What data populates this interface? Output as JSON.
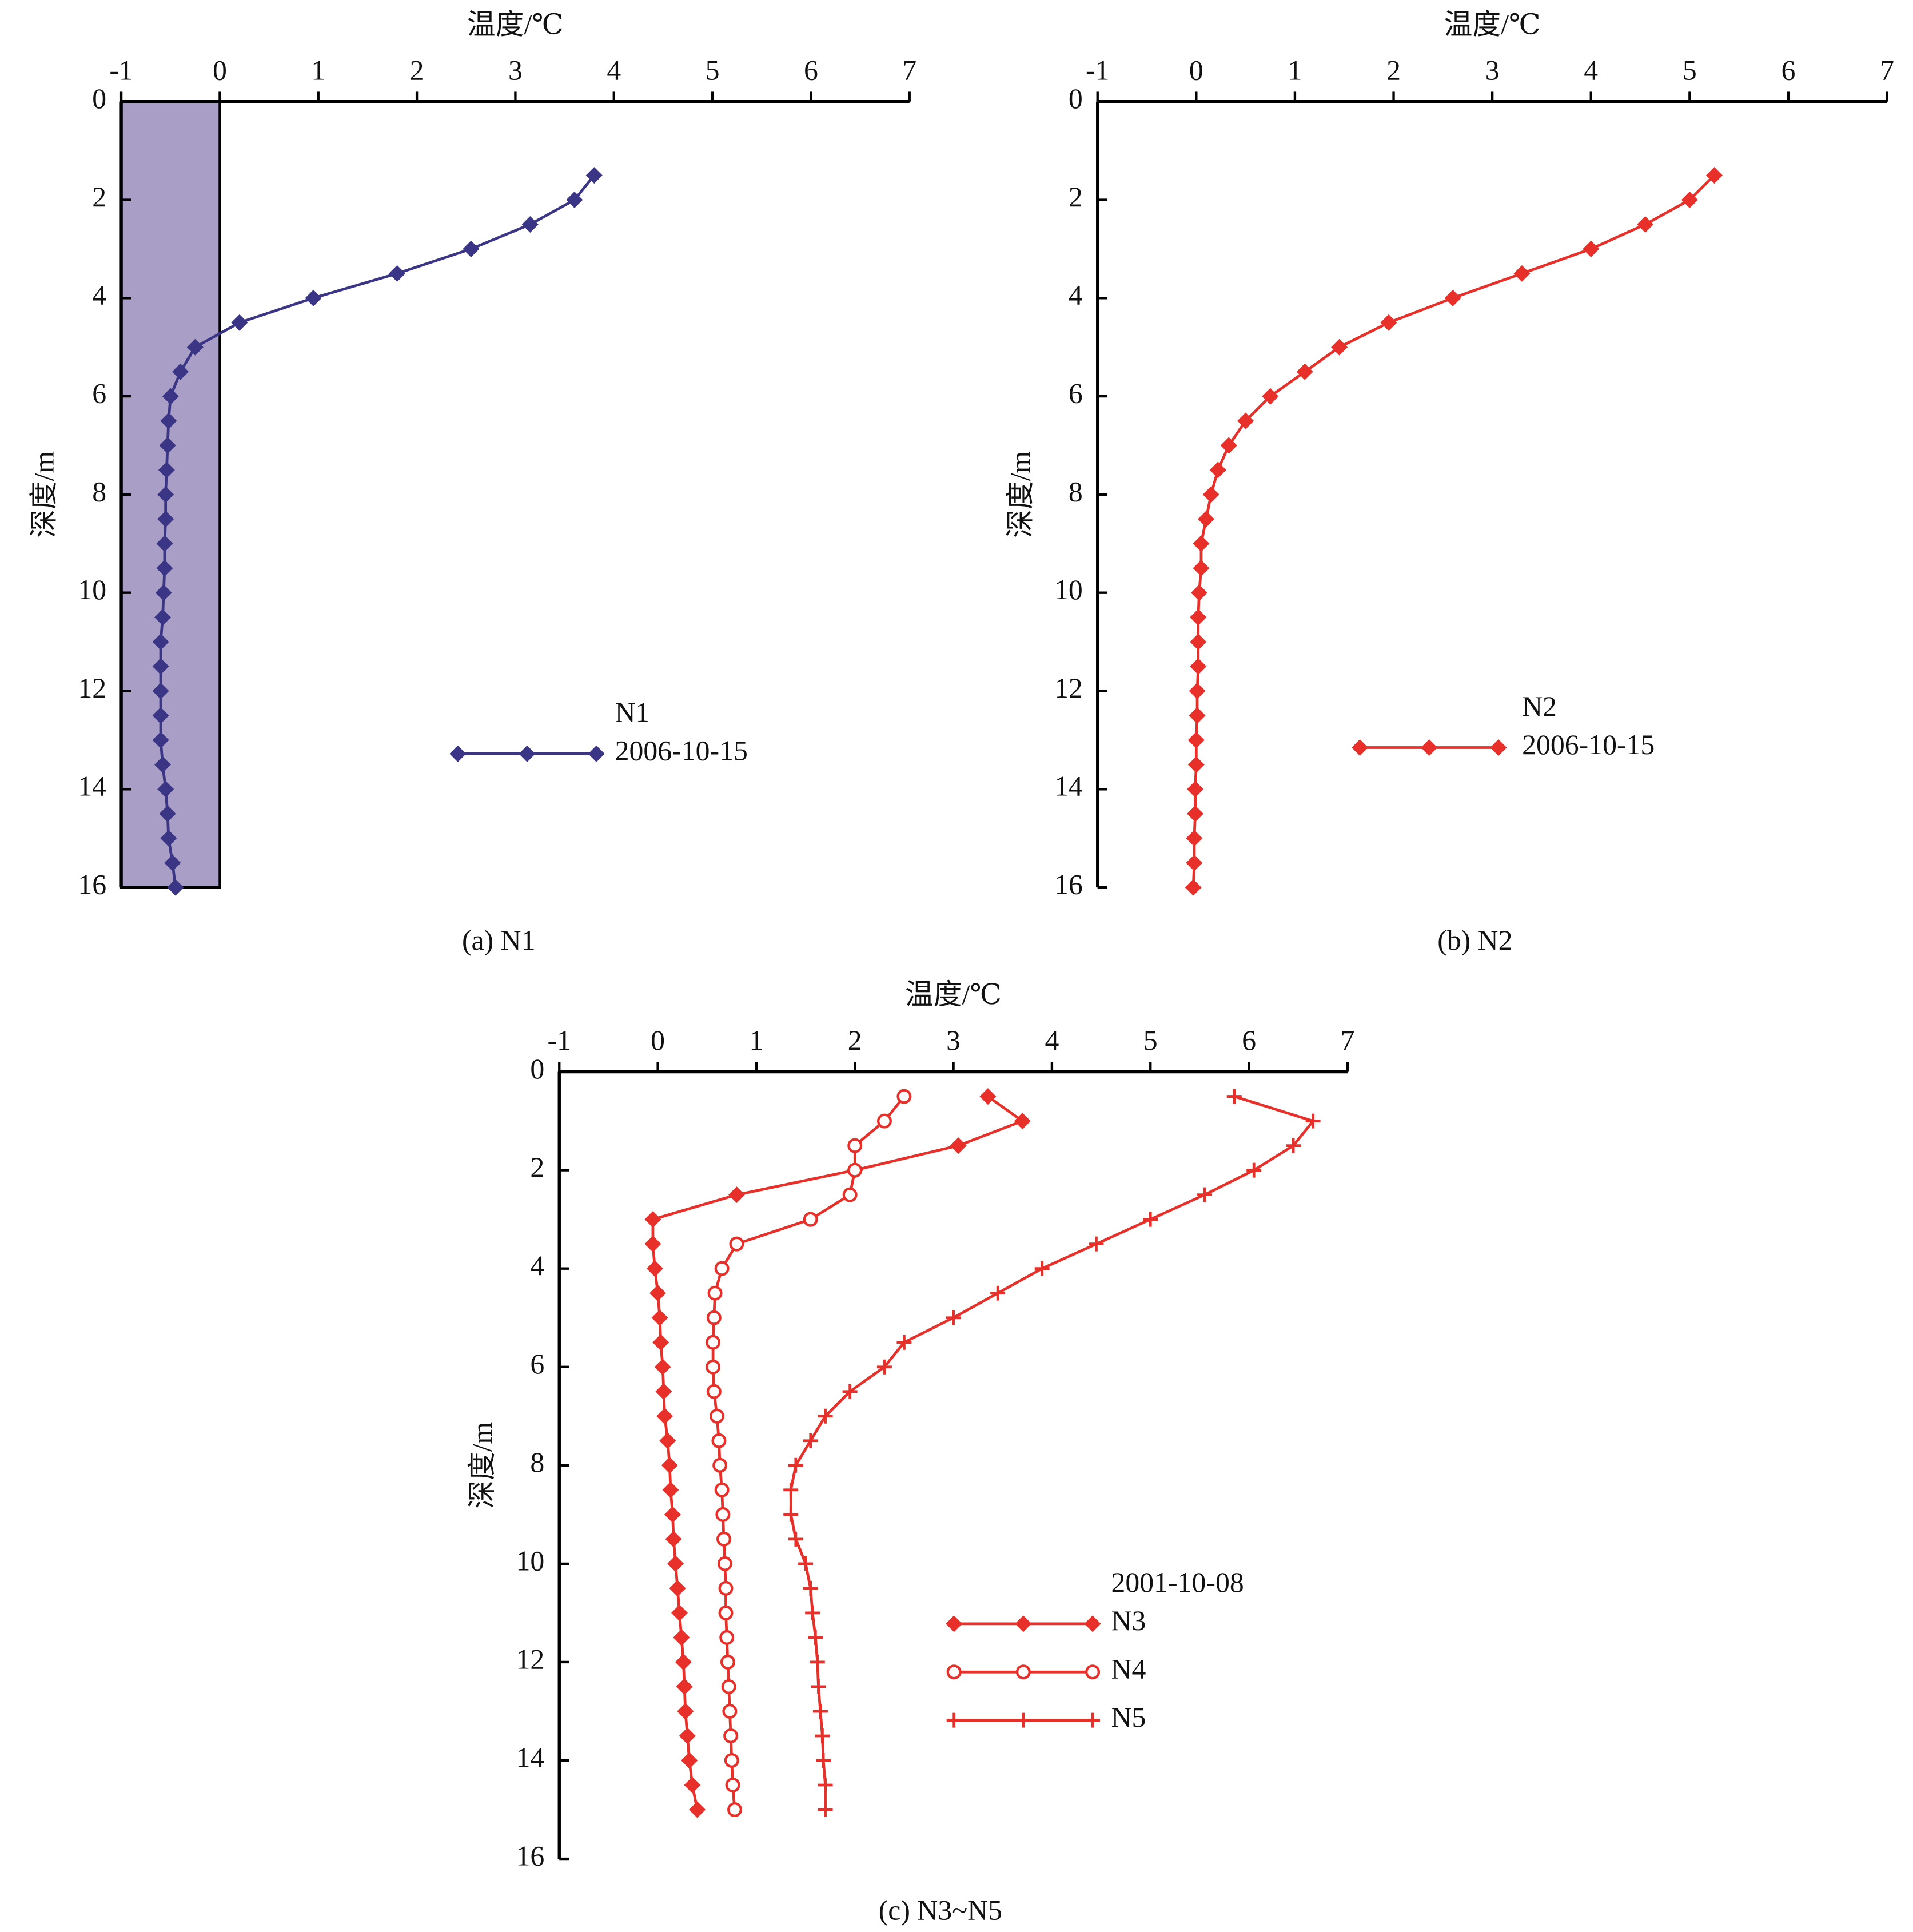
{
  "chart_data": [
    {
      "type": "line",
      "title": "温度/℃",
      "y_label": "深度/m",
      "caption": "(a) N1",
      "legend_title": "2006-10-15",
      "xlim": [
        -1,
        7
      ],
      "xticks": [
        -1,
        0,
        1,
        2,
        3,
        4,
        5,
        6,
        7
      ],
      "ylim": [
        0,
        16
      ],
      "yticks": [
        0,
        2,
        4,
        6,
        8,
        10,
        12,
        14,
        16
      ],
      "y_inverted": true,
      "shade": {
        "from": -1,
        "to": 0,
        "color": "#a99fc6"
      },
      "y": [
        1.5,
        2,
        2.5,
        3,
        3.5,
        4,
        4.5,
        5,
        5.5,
        6,
        6.5,
        7,
        7.5,
        8,
        8.5,
        9,
        9.5,
        10,
        10.5,
        11,
        11.5,
        12,
        12.5,
        13,
        13.5,
        14,
        14.5,
        15,
        15.5,
        16
      ],
      "series": [
        {
          "name": "N1",
          "color": "#3b3585",
          "marker": "diamond",
          "values": [
            3.8,
            3.6,
            3.15,
            2.55,
            1.8,
            0.95,
            0.2,
            -0.25,
            -0.4,
            -0.5,
            -0.52,
            -0.53,
            -0.54,
            -0.55,
            -0.55,
            -0.56,
            -0.56,
            -0.57,
            -0.58,
            -0.6,
            -0.6,
            -0.6,
            -0.6,
            -0.6,
            -0.58,
            -0.55,
            -0.53,
            -0.52,
            -0.48,
            -0.45
          ]
        }
      ]
    },
    {
      "type": "line",
      "title": "温度/℃",
      "y_label": "深度/m",
      "caption": "(b) N2",
      "legend_title": "2006-10-15",
      "xlim": [
        -1,
        7
      ],
      "xticks": [
        -1,
        0,
        1,
        2,
        3,
        4,
        5,
        6,
        7
      ],
      "ylim": [
        0,
        16
      ],
      "yticks": [
        0,
        2,
        4,
        6,
        8,
        10,
        12,
        14,
        16
      ],
      "y_inverted": true,
      "y": [
        1.5,
        2,
        2.5,
        3,
        3.5,
        4,
        4.5,
        5,
        5.5,
        6,
        6.5,
        7,
        7.5,
        8,
        8.5,
        9,
        9.5,
        10,
        10.5,
        11,
        11.5,
        12,
        12.5,
        13,
        13.5,
        14,
        14.5,
        15,
        15.5,
        16
      ],
      "series": [
        {
          "name": "N2",
          "color": "#e8302a",
          "marker": "diamond",
          "values": [
            5.25,
            5.0,
            4.55,
            4.0,
            3.3,
            2.6,
            1.95,
            1.45,
            1.1,
            0.75,
            0.5,
            0.33,
            0.22,
            0.15,
            0.1,
            0.05,
            0.05,
            0.03,
            0.02,
            0.02,
            0.02,
            0.01,
            0.01,
            0.0,
            0.0,
            -0.01,
            -0.01,
            -0.02,
            -0.02,
            -0.03
          ]
        }
      ]
    },
    {
      "type": "line",
      "title": "温度/℃",
      "y_label": "深度/m",
      "caption": "(c) N3~N5",
      "legend_title": "2001-10-08",
      "xlim": [
        -1,
        7
      ],
      "xticks": [
        -1,
        0,
        1,
        2,
        3,
        4,
        5,
        6,
        7
      ],
      "ylim": [
        0,
        16
      ],
      "yticks": [
        0,
        2,
        4,
        6,
        8,
        10,
        12,
        14,
        16
      ],
      "y_inverted": true,
      "y": [
        0.5,
        1,
        1.5,
        2,
        2.5,
        3,
        3.5,
        4,
        4.5,
        5,
        5.5,
        6,
        6.5,
        7,
        7.5,
        8,
        8.5,
        9,
        9.5,
        10,
        10.5,
        11,
        11.5,
        12,
        12.5,
        13,
        13.5,
        14,
        14.5,
        15
      ],
      "series": [
        {
          "name": "N3",
          "color": "#e8302a",
          "marker": "diamond",
          "values": [
            3.35,
            3.7,
            3.05,
            2.0,
            0.8,
            -0.05,
            -0.05,
            -0.03,
            0.0,
            0.02,
            0.03,
            0.05,
            0.06,
            0.07,
            0.1,
            0.12,
            0.13,
            0.15,
            0.16,
            0.18,
            0.2,
            0.22,
            0.24,
            0.26,
            0.27,
            0.28,
            0.3,
            0.32,
            0.35,
            0.4
          ]
        },
        {
          "name": "N4",
          "color": "#e8302a",
          "marker": "circle",
          "values": [
            2.5,
            2.3,
            2.0,
            2.0,
            1.95,
            1.55,
            0.8,
            0.65,
            0.58,
            0.57,
            0.56,
            0.56,
            0.57,
            0.6,
            0.62,
            0.63,
            0.65,
            0.66,
            0.67,
            0.68,
            0.69,
            0.69,
            0.7,
            0.71,
            0.72,
            0.73,
            0.74,
            0.75,
            0.76,
            0.78
          ]
        },
        {
          "name": "N5",
          "color": "#e8302a",
          "marker": "plus",
          "values": [
            5.85,
            6.65,
            6.45,
            6.05,
            5.55,
            5.0,
            4.45,
            3.9,
            3.45,
            3.0,
            2.5,
            2.3,
            1.95,
            1.7,
            1.55,
            1.4,
            1.35,
            1.35,
            1.4,
            1.5,
            1.55,
            1.57,
            1.6,
            1.62,
            1.63,
            1.65,
            1.67,
            1.68,
            1.7,
            1.7
          ]
        }
      ]
    }
  ]
}
